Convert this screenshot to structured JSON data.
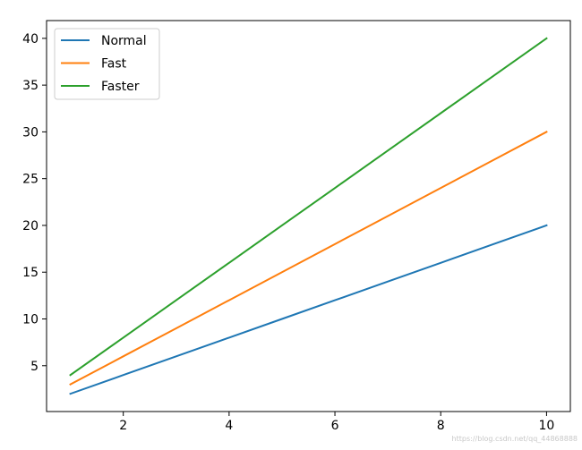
{
  "chart_data": {
    "type": "line",
    "x": [
      1,
      2,
      3,
      4,
      5,
      6,
      7,
      8,
      9,
      10
    ],
    "series": [
      {
        "name": "Normal",
        "color": "#1f77b4",
        "values": [
          2,
          4,
          6,
          8,
          10,
          12,
          14,
          16,
          18,
          20
        ]
      },
      {
        "name": "Fast",
        "color": "#ff7f0e",
        "values": [
          3,
          6,
          9,
          12,
          15,
          18,
          21,
          24,
          27,
          30
        ]
      },
      {
        "name": "Faster",
        "color": "#2ca02c",
        "values": [
          4,
          8,
          12,
          16,
          20,
          24,
          28,
          32,
          36,
          40
        ]
      }
    ],
    "xlim": [
      0.55,
      10.45
    ],
    "ylim": [
      0.1,
      41.9
    ],
    "xticks": [
      2,
      4,
      6,
      8,
      10
    ],
    "yticks": [
      5,
      10,
      15,
      20,
      25,
      30,
      35,
      40
    ],
    "title": "",
    "xlabel": "",
    "ylabel": "",
    "grid": false,
    "legend_position": "top-left"
  },
  "watermark": "https://blog.csdn.net/qq_44868888"
}
